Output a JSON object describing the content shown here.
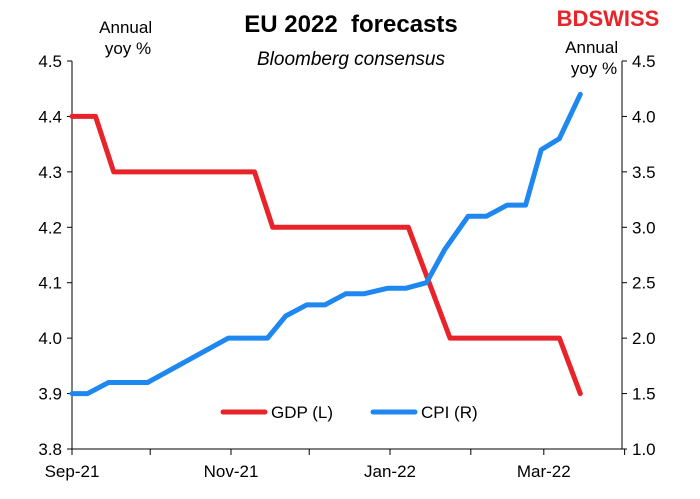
{
  "chart_data": {
    "type": "line",
    "title": "EU 2022  forecasts",
    "subtitle": "Bloomberg consensus",
    "left_axis_unit": "Annual\nyoy %",
    "right_axis_unit": "Annual\nyoy %",
    "logo": "BDSWISS",
    "x_tick_labels": [
      "Sep-21",
      "Nov-21",
      "Jan-22",
      "Mar-22"
    ],
    "y_left": {
      "ticks": [
        "3.8",
        "3.9",
        "4.0",
        "4.1",
        "4.2",
        "4.3",
        "4.4",
        "4.5"
      ],
      "ylim": [
        3.8,
        4.5
      ]
    },
    "y_right": {
      "ticks": [
        "1.0",
        "1.5",
        "2.0",
        "2.5",
        "3.0",
        "3.5",
        "4.0",
        "4.5"
      ],
      "ylim": [
        1.0,
        4.5
      ]
    },
    "legend_position": "bottom-center",
    "series": [
      {
        "name": "GDP (L)",
        "axis": "left",
        "color": "#e8242a",
        "points": [
          [
            "2021-09-01",
            4.4
          ],
          [
            "2021-09-10",
            4.4
          ],
          [
            "2021-09-17",
            4.3
          ],
          [
            "2021-10-31",
            4.3
          ],
          [
            "2021-11-10",
            4.3
          ],
          [
            "2021-11-17",
            4.2
          ],
          [
            "2021-12-31",
            4.2
          ],
          [
            "2022-01-08",
            4.2
          ],
          [
            "2022-01-24",
            4.0
          ],
          [
            "2022-02-28",
            4.0
          ],
          [
            "2022-03-07",
            4.0
          ],
          [
            "2022-03-15",
            3.9
          ]
        ]
      },
      {
        "name": "CPI (R)",
        "axis": "right",
        "color": "#1e88f0",
        "points": [
          [
            "2021-09-01",
            1.5
          ],
          [
            "2021-09-07",
            1.5
          ],
          [
            "2021-09-15",
            1.6
          ],
          [
            "2021-09-30",
            1.6
          ],
          [
            "2021-10-31",
            2.0
          ],
          [
            "2021-11-07",
            2.0
          ],
          [
            "2021-11-15",
            2.0
          ],
          [
            "2021-11-22",
            2.2
          ],
          [
            "2021-11-30",
            2.3
          ],
          [
            "2021-12-07",
            2.3
          ],
          [
            "2021-12-15",
            2.4
          ],
          [
            "2021-12-22",
            2.4
          ],
          [
            "2021-12-31",
            2.45
          ],
          [
            "2022-01-07",
            2.45
          ],
          [
            "2022-01-15",
            2.5
          ],
          [
            "2022-01-22",
            2.8
          ],
          [
            "2022-01-31",
            3.1
          ],
          [
            "2022-02-07",
            3.1
          ],
          [
            "2022-02-15",
            3.2
          ],
          [
            "2022-02-22",
            3.2
          ],
          [
            "2022-02-28",
            3.7
          ],
          [
            "2022-03-07",
            3.8
          ],
          [
            "2022-03-15",
            4.2
          ]
        ]
      }
    ]
  }
}
